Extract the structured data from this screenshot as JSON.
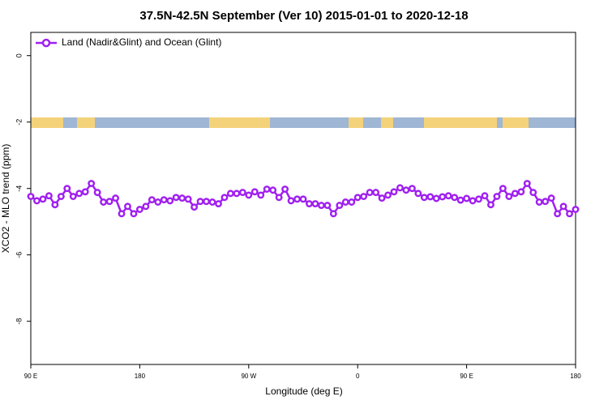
{
  "chart_data": {
    "type": "line",
    "title": "37.5N-42.5N September (Ver 10)   2015-01-01 to 2020-12-18",
    "x_label": "Longitude (deg E)",
    "y_label": "XCO2 - MLO trend (ppm)",
    "xlim": [
      90,
      540
    ],
    "xticks": [
      {
        "value": 90,
        "label": "90 E"
      },
      180,
      {
        "value": 270,
        "label": "90 W"
      },
      {
        "value": 360,
        "label": "0"
      },
      {
        "value": 450,
        "label": "90 E"
      },
      {
        "value": 540,
        "label": "180"
      }
    ],
    "ylim": [
      -9.3,
      0.7
    ],
    "yticks": [
      0,
      -2,
      -4,
      -6,
      -8
    ],
    "legend": "top-left",
    "x": [
      90,
      95,
      100,
      105,
      110,
      115,
      120,
      125,
      130,
      135,
      140,
      145,
      150,
      155,
      160,
      165,
      170,
      175,
      180,
      185,
      190,
      195,
      200,
      205,
      210,
      215,
      220,
      225,
      230,
      235,
      240,
      245,
      250,
      255,
      260,
      265,
      270,
      275,
      280,
      285,
      290,
      295,
      300,
      305,
      310,
      315,
      320,
      325,
      330,
      335,
      340,
      345,
      350,
      355,
      360,
      365,
      370,
      375,
      380,
      385,
      390,
      395,
      400,
      405,
      410,
      415,
      420,
      425,
      430,
      435,
      440,
      445,
      450,
      455,
      460,
      465,
      470,
      475,
      480,
      485,
      490,
      495,
      500,
      505,
      510,
      515,
      520,
      525,
      530,
      535,
      540
    ],
    "series": [
      {
        "name": "Land (Nadir&Glint) and Ocean (Glint)",
        "color": "#a020f0",
        "values": [
          -4.24,
          -4.37,
          -4.32,
          -4.22,
          -4.49,
          -4.24,
          -4.0,
          -4.24,
          -4.15,
          -4.1,
          -3.85,
          -4.12,
          -4.41,
          -4.39,
          -4.29,
          -4.76,
          -4.54,
          -4.76,
          -4.63,
          -4.54,
          -4.34,
          -4.41,
          -4.34,
          -4.37,
          -4.27,
          -4.29,
          -4.32,
          -4.56,
          -4.39,
          -4.39,
          -4.41,
          -4.46,
          -4.27,
          -4.15,
          -4.15,
          -4.12,
          -4.2,
          -4.1,
          -4.2,
          -4.02,
          -4.05,
          -4.27,
          -4.02,
          -4.37,
          -4.32,
          -4.32,
          -4.46,
          -4.46,
          -4.51,
          -4.51,
          -4.76,
          -4.51,
          -4.41,
          -4.41,
          -4.27,
          -4.24,
          -4.12,
          -4.12,
          -4.29,
          -4.2,
          -4.1,
          -3.98,
          -4.05,
          -4.0,
          -4.15,
          -4.27,
          -4.25,
          -4.3,
          -4.25,
          -4.22,
          -4.27,
          -4.35,
          -4.3,
          -4.37,
          -4.32,
          -4.22,
          -4.49,
          -4.24,
          -4.0,
          -4.24,
          -4.15,
          -4.1,
          -3.85,
          -4.12,
          -4.41,
          -4.39,
          -4.29,
          -4.76,
          -4.54,
          -4.76,
          -4.63
        ]
      }
    ]
  }
}
